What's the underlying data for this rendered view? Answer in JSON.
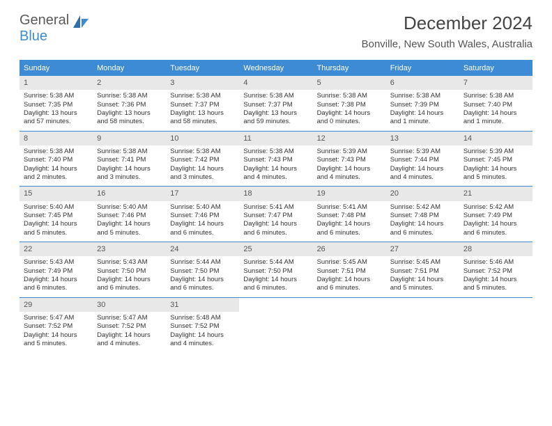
{
  "logo": {
    "text1": "General",
    "text2": "Blue"
  },
  "title": "December 2024",
  "location": "Bonville, New South Wales, Australia",
  "weekdays": [
    "Sunday",
    "Monday",
    "Tuesday",
    "Wednesday",
    "Thursday",
    "Friday",
    "Saturday"
  ],
  "colors": {
    "accent": "#3d8bd4",
    "dayNumBg": "#e8e8e8",
    "text": "#333333",
    "titleText": "#444444"
  },
  "weeks": [
    [
      {
        "n": "1",
        "sr": "5:38 AM",
        "ss": "7:35 PM",
        "dl": "13 hours and 57 minutes."
      },
      {
        "n": "2",
        "sr": "5:38 AM",
        "ss": "7:36 PM",
        "dl": "13 hours and 58 minutes."
      },
      {
        "n": "3",
        "sr": "5:38 AM",
        "ss": "7:37 PM",
        "dl": "13 hours and 58 minutes."
      },
      {
        "n": "4",
        "sr": "5:38 AM",
        "ss": "7:37 PM",
        "dl": "13 hours and 59 minutes."
      },
      {
        "n": "5",
        "sr": "5:38 AM",
        "ss": "7:38 PM",
        "dl": "14 hours and 0 minutes."
      },
      {
        "n": "6",
        "sr": "5:38 AM",
        "ss": "7:39 PM",
        "dl": "14 hours and 1 minute."
      },
      {
        "n": "7",
        "sr": "5:38 AM",
        "ss": "7:40 PM",
        "dl": "14 hours and 1 minute."
      }
    ],
    [
      {
        "n": "8",
        "sr": "5:38 AM",
        "ss": "7:40 PM",
        "dl": "14 hours and 2 minutes."
      },
      {
        "n": "9",
        "sr": "5:38 AM",
        "ss": "7:41 PM",
        "dl": "14 hours and 3 minutes."
      },
      {
        "n": "10",
        "sr": "5:38 AM",
        "ss": "7:42 PM",
        "dl": "14 hours and 3 minutes."
      },
      {
        "n": "11",
        "sr": "5:38 AM",
        "ss": "7:43 PM",
        "dl": "14 hours and 4 minutes."
      },
      {
        "n": "12",
        "sr": "5:39 AM",
        "ss": "7:43 PM",
        "dl": "14 hours and 4 minutes."
      },
      {
        "n": "13",
        "sr": "5:39 AM",
        "ss": "7:44 PM",
        "dl": "14 hours and 4 minutes."
      },
      {
        "n": "14",
        "sr": "5:39 AM",
        "ss": "7:45 PM",
        "dl": "14 hours and 5 minutes."
      }
    ],
    [
      {
        "n": "15",
        "sr": "5:40 AM",
        "ss": "7:45 PM",
        "dl": "14 hours and 5 minutes."
      },
      {
        "n": "16",
        "sr": "5:40 AM",
        "ss": "7:46 PM",
        "dl": "14 hours and 5 minutes."
      },
      {
        "n": "17",
        "sr": "5:40 AM",
        "ss": "7:46 PM",
        "dl": "14 hours and 6 minutes."
      },
      {
        "n": "18",
        "sr": "5:41 AM",
        "ss": "7:47 PM",
        "dl": "14 hours and 6 minutes."
      },
      {
        "n": "19",
        "sr": "5:41 AM",
        "ss": "7:48 PM",
        "dl": "14 hours and 6 minutes."
      },
      {
        "n": "20",
        "sr": "5:42 AM",
        "ss": "7:48 PM",
        "dl": "14 hours and 6 minutes."
      },
      {
        "n": "21",
        "sr": "5:42 AM",
        "ss": "7:49 PM",
        "dl": "14 hours and 6 minutes."
      }
    ],
    [
      {
        "n": "22",
        "sr": "5:43 AM",
        "ss": "7:49 PM",
        "dl": "14 hours and 6 minutes."
      },
      {
        "n": "23",
        "sr": "5:43 AM",
        "ss": "7:50 PM",
        "dl": "14 hours and 6 minutes."
      },
      {
        "n": "24",
        "sr": "5:44 AM",
        "ss": "7:50 PM",
        "dl": "14 hours and 6 minutes."
      },
      {
        "n": "25",
        "sr": "5:44 AM",
        "ss": "7:50 PM",
        "dl": "14 hours and 6 minutes."
      },
      {
        "n": "26",
        "sr": "5:45 AM",
        "ss": "7:51 PM",
        "dl": "14 hours and 6 minutes."
      },
      {
        "n": "27",
        "sr": "5:45 AM",
        "ss": "7:51 PM",
        "dl": "14 hours and 5 minutes."
      },
      {
        "n": "28",
        "sr": "5:46 AM",
        "ss": "7:52 PM",
        "dl": "14 hours and 5 minutes."
      }
    ],
    [
      {
        "n": "29",
        "sr": "5:47 AM",
        "ss": "7:52 PM",
        "dl": "14 hours and 5 minutes."
      },
      {
        "n": "30",
        "sr": "5:47 AM",
        "ss": "7:52 PM",
        "dl": "14 hours and 4 minutes."
      },
      {
        "n": "31",
        "sr": "5:48 AM",
        "ss": "7:52 PM",
        "dl": "14 hours and 4 minutes."
      },
      null,
      null,
      null,
      null
    ]
  ],
  "labels": {
    "sunrise": "Sunrise:",
    "sunset": "Sunset:",
    "daylight": "Daylight:"
  }
}
